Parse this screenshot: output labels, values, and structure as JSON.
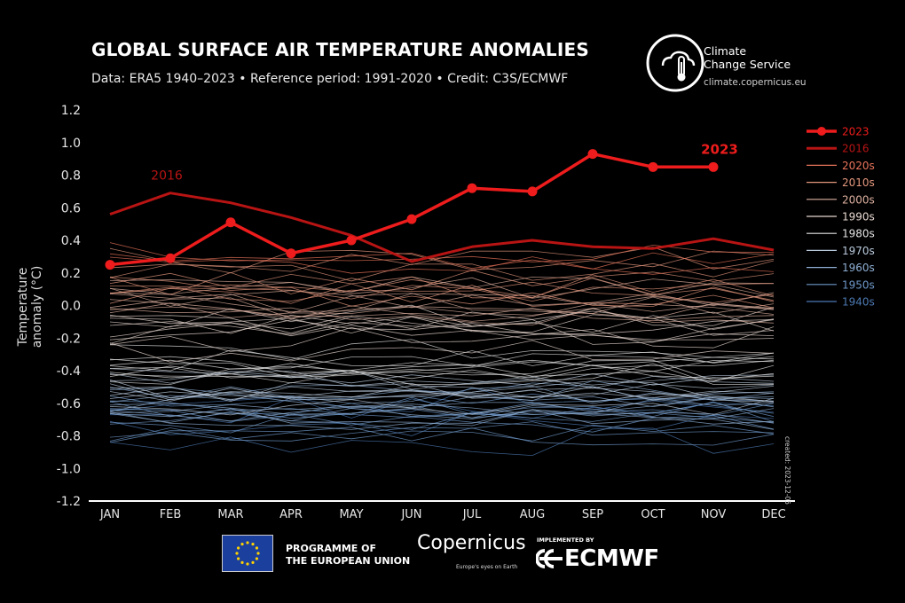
{
  "header": {
    "title": "GLOBAL SURFACE AIR TEMPERATURE ANOMALIES",
    "subtitle": "Data: ERA5 1940–2023 • Reference period: 1991-2020 • Credit: C3S/ECMWF"
  },
  "brand": {
    "name_line1": "Climate",
    "name_line2": "Change Service",
    "url": "climate.copernicus.eu"
  },
  "created_note": "created: 2023-12-05",
  "footer": {
    "eu_text_line1": "PROGRAMME OF",
    "eu_text_line2": "THE EUROPEAN UNION",
    "copernicus_name": "Copernicus",
    "copernicus_tagline": "Europe's eyes on Earth",
    "implemented_by": "IMPLEMENTED BY",
    "ecmwf_name": "ECMWF"
  },
  "colors": {
    "background": "#000000",
    "highlight_2023": "#ee1c1c",
    "highlight_2016": "#b81414",
    "decades": {
      "2020s": "#e8735a",
      "2010s": "#e4977e",
      "2000s": "#ddb0a0",
      "1990s": "#e6d6cf",
      "1980s": "#e2e2e2",
      "1970s": "#b9c9dc",
      "1960s": "#8eaed3",
      "1950s": "#6d97c8",
      "1940s": "#4c78b2"
    }
  },
  "chart_data": {
    "type": "line",
    "title": "GLOBAL SURFACE AIR TEMPERATURE ANOMALIES",
    "xlabel": "",
    "ylabel": "Temperature anomaly (°C)",
    "categories": [
      "JAN",
      "FEB",
      "MAR",
      "APR",
      "MAY",
      "JUN",
      "JUL",
      "AUG",
      "SEP",
      "OCT",
      "NOV",
      "DEC"
    ],
    "ylim": [
      -1.2,
      1.2
    ],
    "yticks": [
      1.2,
      1.0,
      0.8,
      0.6,
      0.4,
      0.2,
      0.0,
      -0.2,
      -0.4,
      -0.6,
      -0.8,
      -1.0,
      -1.2
    ],
    "ytick_labels": [
      "1.2",
      "1.0",
      "0.8",
      "0.6",
      "0.4",
      "0.2",
      "0.0",
      "-0.2",
      "-0.4",
      "-0.6",
      "-0.8",
      "-1.0",
      "-1.2"
    ],
    "grid": false,
    "legend_position": "right",
    "legend": [
      "2023",
      "2016",
      "2020s",
      "2010s",
      "2000s",
      "1990s",
      "1980s",
      "1970s",
      "1960s",
      "1950s",
      "1940s"
    ],
    "series": [
      {
        "name": "2023",
        "values": [
          0.25,
          0.29,
          0.51,
          0.32,
          0.4,
          0.53,
          0.72,
          0.7,
          0.93,
          0.85,
          0.85,
          null
        ]
      },
      {
        "name": "2016",
        "values": [
          0.56,
          0.69,
          0.63,
          0.54,
          0.43,
          0.27,
          0.36,
          0.4,
          0.36,
          0.35,
          0.41,
          0.34
        ]
      }
    ],
    "decades": [
      {
        "name": "2020s",
        "base": 0.32,
        "spread": 0.1,
        "count": 3
      },
      {
        "name": "2010s",
        "base": 0.18,
        "spread": 0.12,
        "count": 10
      },
      {
        "name": "2000s",
        "base": 0.02,
        "spread": 0.1,
        "count": 10
      },
      {
        "name": "1990s",
        "base": -0.18,
        "spread": 0.12,
        "count": 10
      },
      {
        "name": "1980s",
        "base": -0.34,
        "spread": 0.1,
        "count": 10
      },
      {
        "name": "1970s",
        "base": -0.52,
        "spread": 0.1,
        "count": 10
      },
      {
        "name": "1960s",
        "base": -0.62,
        "spread": 0.1,
        "count": 10
      },
      {
        "name": "1950s",
        "base": -0.7,
        "spread": 0.1,
        "count": 10
      },
      {
        "name": "1940s",
        "base": -0.72,
        "spread": 0.14,
        "count": 4
      }
    ],
    "annotations": [
      {
        "text": "2016",
        "series": "2016",
        "at": "FEB"
      },
      {
        "text": "2023",
        "series": "2023",
        "at": "NOV"
      }
    ]
  }
}
